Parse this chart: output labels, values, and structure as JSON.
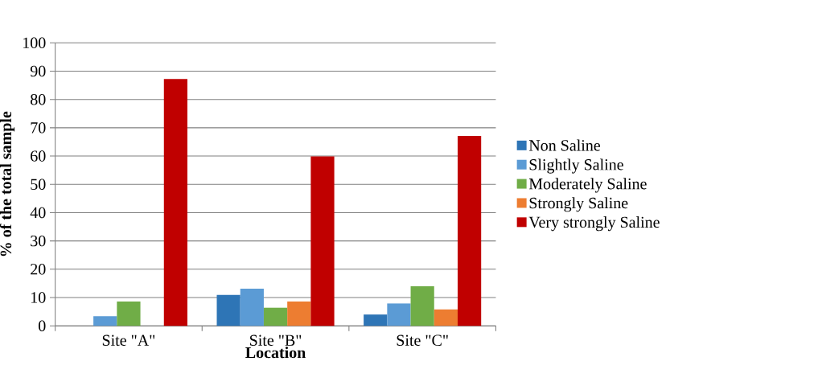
{
  "chart_data": {
    "type": "bar",
    "xlabel": "Location",
    "ylabel": "% of the total sample",
    "categories": [
      "Site \"A\"",
      "Site \"B\"",
      "Site \"C\""
    ],
    "series": [
      {
        "name": "Non Saline",
        "color": "#2e75b6",
        "values": [
          0,
          10.9,
          4.0
        ]
      },
      {
        "name": "Slightly Saline",
        "color": "#5b9bd5",
        "values": [
          3.4,
          13.1,
          7.9
        ]
      },
      {
        "name": "Moderately Saline",
        "color": "#70ad47",
        "values": [
          8.6,
          6.4,
          14.0
        ]
      },
      {
        "name": "Strongly Saline",
        "color": "#ed7d31",
        "values": [
          0,
          8.6,
          5.8
        ]
      },
      {
        "name": "Very strongly Saline",
        "color": "#c00000",
        "values": [
          87.2,
          59.9,
          67.1
        ]
      }
    ],
    "ylim": [
      0,
      100
    ],
    "yticks": [
      0,
      10,
      20,
      30,
      40,
      50,
      60,
      70,
      80,
      90,
      100
    ],
    "grid": "y",
    "legend": "right"
  }
}
